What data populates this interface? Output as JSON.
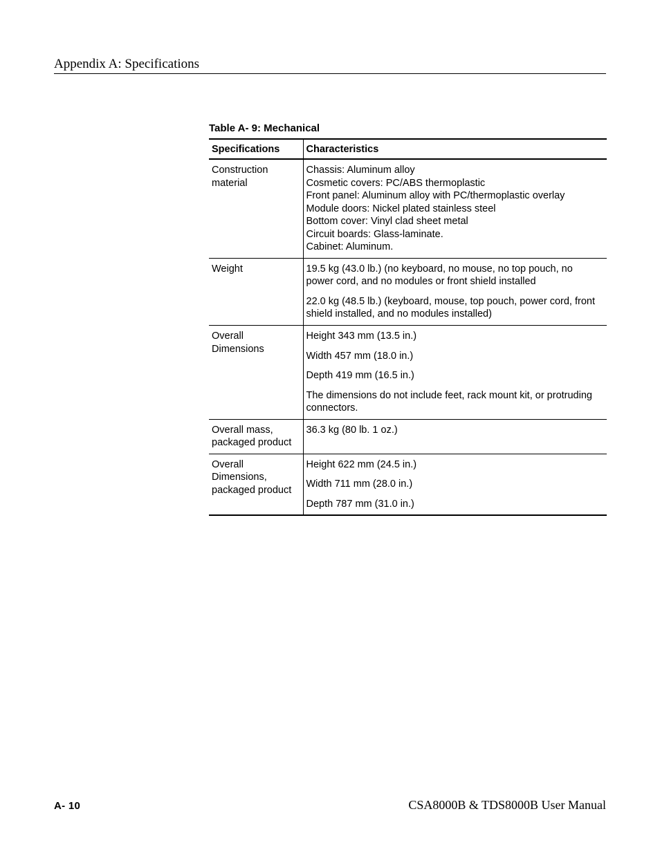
{
  "header": {
    "title": "Appendix A: Specifications"
  },
  "table": {
    "caption": "Table A- 9: Mechanical",
    "columns": [
      "Specifications",
      "Characteristics"
    ],
    "rows": [
      {
        "spec": "Construction material",
        "chars": [
          "Chassis: Aluminum alloy\nCosmetic covers: PC/ABS thermoplastic\nFront panel: Aluminum alloy with PC/thermoplastic overlay\nModule doors: Nickel plated stainless steel\nBottom cover: Vinyl clad sheet metal\nCircuit boards: Glass-laminate.\nCabinet: Aluminum."
        ]
      },
      {
        "spec": "Weight",
        "chars": [
          "19.5 kg (43.0 lb.) (no keyboard, no mouse, no top pouch, no power cord, and no modules or front shield installed",
          "22.0 kg (48.5 lb.) (keyboard, mouse, top pouch, power cord, front shield installed, and no modules installed)"
        ]
      },
      {
        "spec": "Overall Dimensions",
        "chars": [
          "Height 343 mm (13.5 in.)",
          "Width 457 mm (18.0 in.)",
          "Depth 419 mm (16.5 in.)",
          "The dimensions do not include feet, rack mount kit, or protruding connectors."
        ]
      },
      {
        "spec": "Overall mass, packaged product",
        "chars": [
          "36.3 kg (80 lb. 1 oz.)"
        ]
      },
      {
        "spec": "Overall Dimensions, packaged product",
        "chars": [
          "Height 622 mm (24.5 in.)",
          "Width 711 mm (28.0 in.)",
          "Depth 787 mm (31.0 in.)"
        ]
      }
    ]
  },
  "footer": {
    "page_number": "A- 10",
    "doc_title": "CSA8000B & TDS8000B User Manual"
  }
}
